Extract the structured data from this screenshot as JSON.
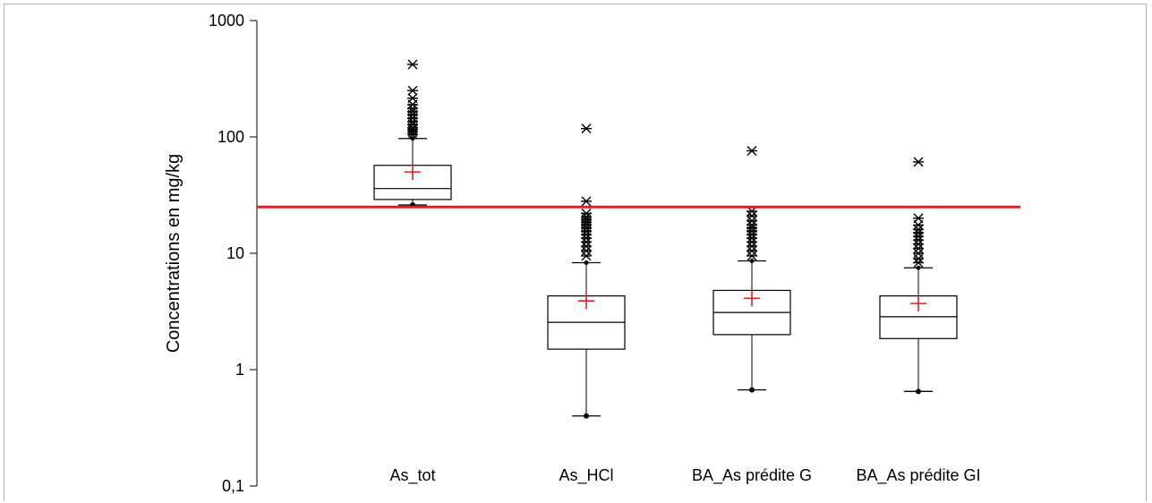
{
  "chart_data": {
    "type": "box",
    "title": "",
    "xlabel": "",
    "ylabel": "Concentrations en mg/kg",
    "yscale": "log",
    "ylim": [
      0.1,
      1000
    ],
    "yticks": [
      {
        "value": 1000,
        "label": "1000"
      },
      {
        "value": 100,
        "label": "100"
      },
      {
        "value": 10,
        "label": "10"
      },
      {
        "value": 1,
        "label": "1"
      },
      {
        "value": 0.1,
        "label": "0,1"
      }
    ],
    "categories": [
      "As_tot",
      "As_HCl",
      "BA_As prédite G",
      "BA_As prédite GI"
    ],
    "boxes": [
      {
        "min": 26,
        "q1": 29,
        "median": 36,
        "q3": 57,
        "max": 97,
        "mean": 50,
        "outliers": [
          105,
          110,
          115,
          120,
          128,
          135,
          145,
          155,
          165,
          175,
          190,
          215,
          250,
          420
        ]
      },
      {
        "min": 0.4,
        "q1": 1.5,
        "median": 2.55,
        "q3": 4.3,
        "max": 8.3,
        "mean": 3.9,
        "outliers": [
          9.5,
          10.5,
          11.5,
          12.5,
          13.5,
          14.5,
          15.5,
          16.5,
          17.5,
          18.5,
          19.5,
          20.5,
          22,
          28,
          118
        ]
      },
      {
        "min": 0.67,
        "q1": 2.0,
        "median": 3.1,
        "q3": 4.8,
        "max": 8.6,
        "mean": 4.1,
        "outliers": [
          9.5,
          10.5,
          11.5,
          12.5,
          13.5,
          14.5,
          15.5,
          16.5,
          17.5,
          19,
          21,
          23,
          76
        ]
      },
      {
        "min": 0.65,
        "q1": 1.85,
        "median": 2.85,
        "q3": 4.3,
        "max": 7.5,
        "mean": 3.7,
        "outliers": [
          8.3,
          9,
          10,
          11,
          12,
          13,
          14,
          15,
          16,
          17.5,
          20,
          61
        ]
      }
    ],
    "reference_line": {
      "value": 25,
      "color": "#e02020"
    },
    "colors": {
      "box": "#000000",
      "mean": "#e02020",
      "reference": "#e02020"
    },
    "grid": false,
    "legend": "none"
  }
}
